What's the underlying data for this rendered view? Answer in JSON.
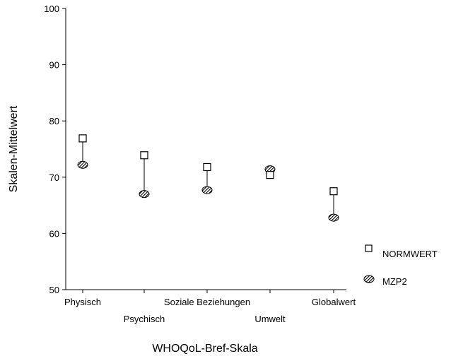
{
  "chart_data": {
    "type": "scatter",
    "title": "",
    "xlabel": "WHOQoL-Bref-Skala",
    "ylabel": "Skalen-Mittelwert",
    "ylim": [
      50,
      100
    ],
    "yticks": [
      "50",
      "60",
      "70",
      "80",
      "90",
      "100"
    ],
    "categories": [
      "Physisch",
      "Psychisch",
      "Soziale Beziehungen",
      "Umwelt",
      "Globalwert"
    ],
    "series": [
      {
        "name": "NORMWERT",
        "marker": "open-square",
        "color": "#000000",
        "values": [
          76.9,
          73.9,
          71.8,
          70.4,
          67.5
        ]
      },
      {
        "name": "MZP2",
        "marker": "hatched-ellipse",
        "color": "#000000",
        "values": [
          72.2,
          67.0,
          67.7,
          71.4,
          62.8
        ]
      }
    ],
    "connectors": "vertical line between series per category",
    "legend_position": "right",
    "grid": false
  }
}
